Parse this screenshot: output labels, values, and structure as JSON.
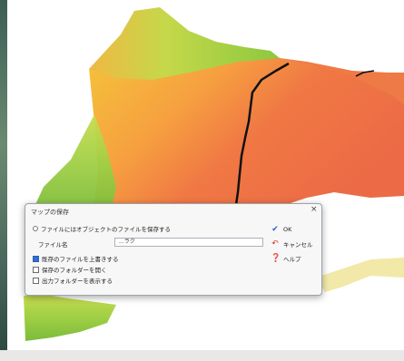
{
  "dialog": {
    "title": "マップの保存",
    "close_glyph": "×",
    "radio_label": "ファイルにはオブジェクトのファイルを保存する",
    "filename_label": "ファイル名",
    "filename_value": "...ラク",
    "options": [
      {
        "label": "既存のファイルを上書きする",
        "checked": true
      },
      {
        "label": "保存のフォルダーを開く",
        "checked": false
      },
      {
        "label": "出力フォルダーを表示する",
        "checked": false
      }
    ],
    "buttons": {
      "ok": "OK",
      "cancel": "キャンセル",
      "help": "ヘルプ"
    }
  },
  "icons": {
    "ok": "checkmark-icon",
    "cancel": "undo-arrow-icon",
    "help": "help-icon"
  },
  "colors": {
    "terrain_low": "#7cc23a",
    "terrain_mid": "#f2dc3c",
    "terrain_high": "#f06a3c",
    "ok_check": "#2a62c4",
    "cancel_arrow": "#d83a2a",
    "help_blue": "#2a5fb8"
  }
}
